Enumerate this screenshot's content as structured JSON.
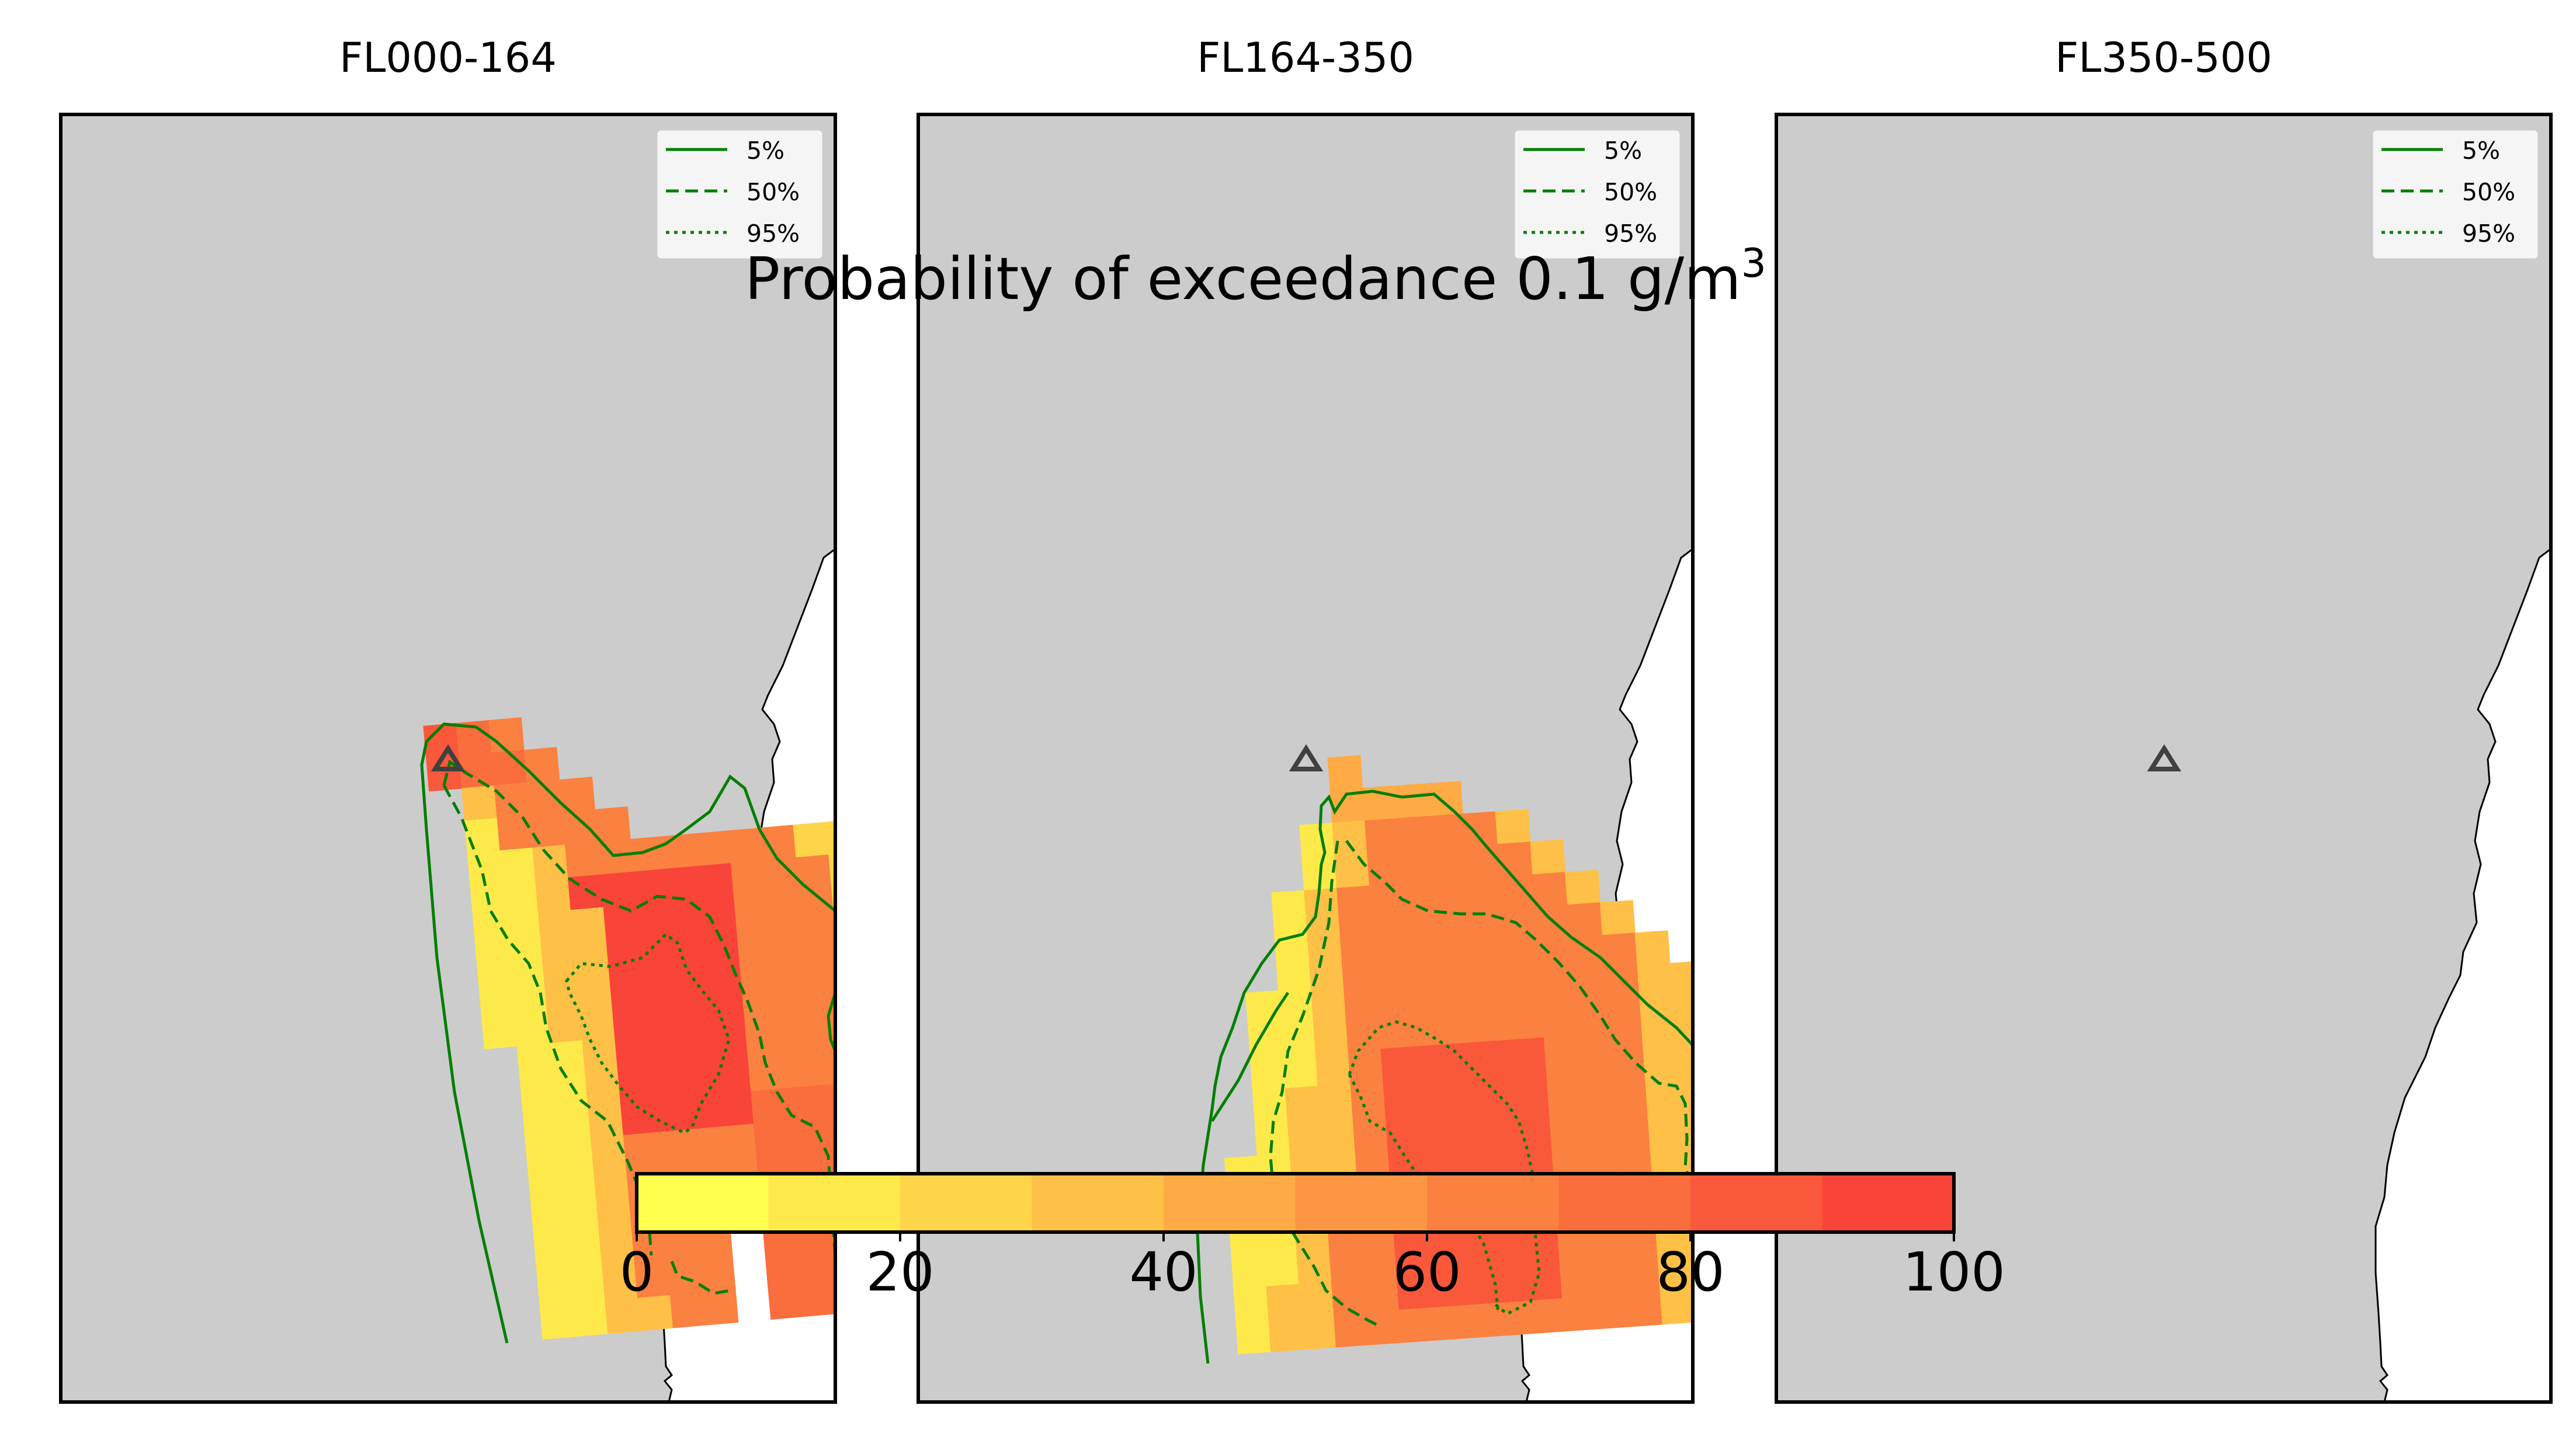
{
  "figure": {
    "suptitle": "Probability of exceedance 0.1 g/m",
    "suptitle_sup": "3"
  },
  "chart_data": {
    "type": "heatmap",
    "panels": [
      {
        "title": "FL000-164"
      },
      {
        "title": "FL164-350"
      },
      {
        "title": "FL350-500"
      }
    ],
    "legend": {
      "placement": "top-right",
      "entries": [
        {
          "label": "5%",
          "style": "solid"
        },
        {
          "label": "50%",
          "style": "dashed"
        },
        {
          "label": "95%",
          "style": "dotted"
        }
      ]
    },
    "colorbar": {
      "range": [
        0,
        100
      ],
      "ticks": [
        "0",
        "20",
        "40",
        "60",
        "80",
        "100"
      ],
      "bin_step": 10,
      "colors": [
        "#ffff4d",
        "#fee94b",
        "#fed549",
        "#fec047",
        "#feab45",
        "#fc9643",
        "#fb8140",
        "#fa6d3d",
        "#f9583b",
        "#f84439"
      ]
    },
    "colors": {
      "land": "#cccccc",
      "contour": "#007f00",
      "volcano": "#404040"
    }
  }
}
